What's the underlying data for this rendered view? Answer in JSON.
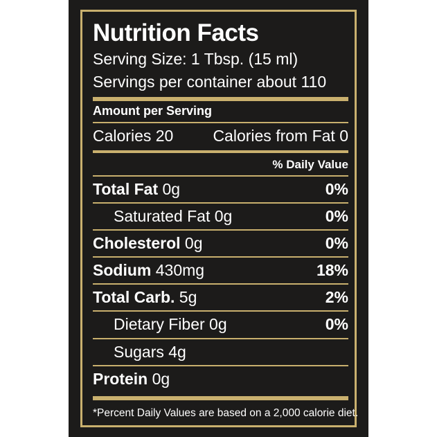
{
  "title": "Nutrition Facts",
  "serving_size": "Serving Size: 1 Tbsp. (15 ml)",
  "servings_per_container": "Servings per container about 110",
  "amount_per_serving": "Amount per Serving",
  "calories": "Calories 20",
  "calories_from_fat": "Calories from Fat 0",
  "daily_value_header": "% Daily Value",
  "nutrients": [
    {
      "name": "Total Fat",
      "amount": " 0g",
      "percent": "0%"
    },
    {
      "name": "Saturated Fat",
      "amount": " 0g",
      "percent": "0%"
    },
    {
      "name": "Cholesterol",
      "amount": " 0g",
      "percent": "0%"
    },
    {
      "name": "Sodium",
      "amount": " 430mg",
      "percent": "18%"
    },
    {
      "name": "Total Carb.",
      "amount": " 5g",
      "percent": "2%"
    },
    {
      "name": "Dietary Fiber",
      "amount": " 0g",
      "percent": "0%"
    },
    {
      "name": "Sugars",
      "amount": " 4g",
      "percent": ""
    },
    {
      "name": "Protein",
      "amount": " 0g",
      "percent": ""
    }
  ],
  "footnote": "*Percent Daily Values are based on a 2,000 calorie diet.",
  "colors": {
    "background": "#1c1b1a",
    "accent": "#c9b06e",
    "text": "#ffffff"
  }
}
